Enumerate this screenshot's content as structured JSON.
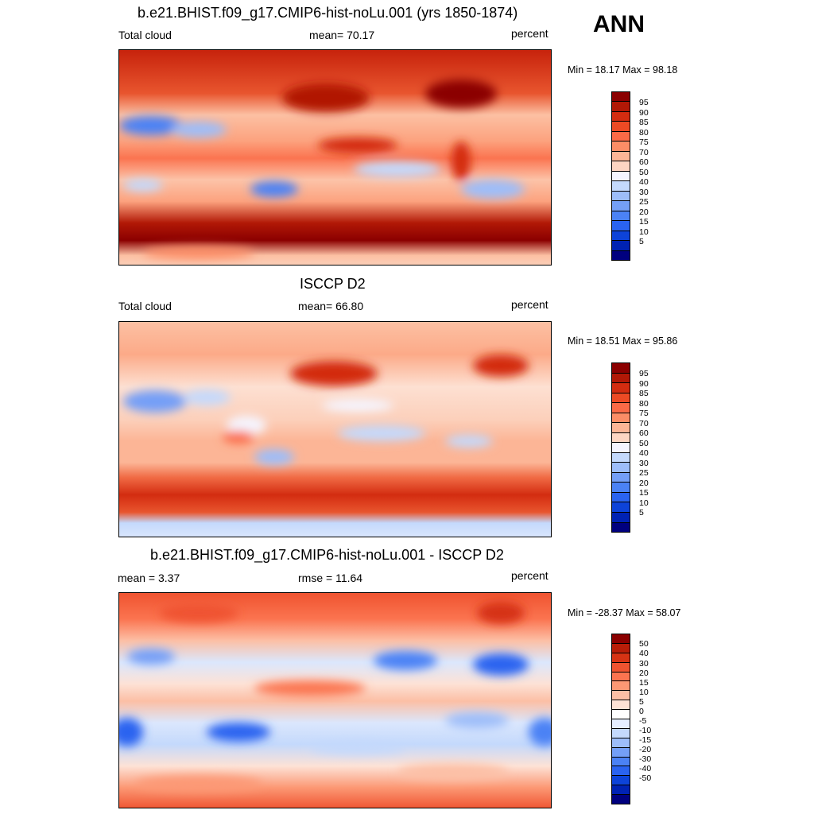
{
  "season": "ANN",
  "palettes": {
    "cloud": [
      "#00007f",
      "#0022b3",
      "#0d43d9",
      "#2a63f0",
      "#4b82f5",
      "#749ff7",
      "#9dbdf9",
      "#c4d9fc",
      "#f5f5ff",
      "#fdd5c2",
      "#fcb596",
      "#fc8d66",
      "#fb6a46",
      "#ec4a24",
      "#d32c10",
      "#b11806",
      "#8b0000"
    ],
    "diff": [
      "#00007f",
      "#0022b3",
      "#0d43d9",
      "#2a63f0",
      "#4b82f5",
      "#749ff7",
      "#9dbdf9",
      "#c4d9fc",
      "#e6efff",
      "#ffffff",
      "#fde2d6",
      "#fcbfa5",
      "#fc9874",
      "#fb7450",
      "#ef5330",
      "#d63314",
      "#b81d08",
      "#8b0000"
    ]
  },
  "panels": [
    {
      "title": "b.e21.BHIST.f09_g17.CMIP6-hist-noLu.001 (yrs 1850-1874)",
      "left_label": "Total cloud",
      "center_label": "mean=  70.17",
      "right_label": "percent",
      "minmax": "Min =  18.17 Max =  98.18",
      "colorbar_labels": [
        "95",
        "90",
        "85",
        "80",
        "75",
        "70",
        "60",
        "50",
        "40",
        "30",
        "25",
        "20",
        "15",
        "10",
        "5"
      ]
    },
    {
      "title": "ISCCP D2",
      "left_label": "Total cloud",
      "center_label": "mean=  66.80",
      "right_label": "percent",
      "minmax": "Min =  18.51 Max =  95.86",
      "colorbar_labels": [
        "95",
        "90",
        "85",
        "80",
        "75",
        "70",
        "60",
        "50",
        "40",
        "30",
        "25",
        "20",
        "15",
        "10",
        "5"
      ]
    },
    {
      "title": "b.e21.BHIST.f09_g17.CMIP6-hist-noLu.001 - ISCCP D2",
      "left_label": "mean =   3.37",
      "center_label": "rmse =  11.64",
      "right_label": "percent",
      "minmax": "Min = -28.37 Max =  58.07",
      "colorbar_labels": [
        "50",
        "40",
        "30",
        "20",
        "15",
        "10",
        "5",
        "0",
        "-5",
        "-10",
        "-15",
        "-20",
        "-30",
        "-40",
        "-50"
      ]
    }
  ]
}
